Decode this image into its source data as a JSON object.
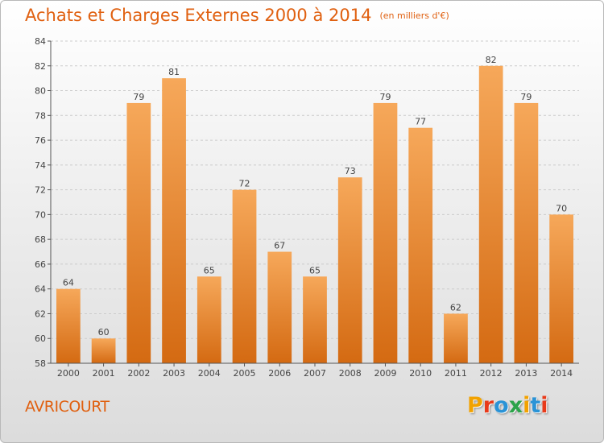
{
  "header": {
    "title": "Achats et Charges Externes 2000 à 2014",
    "unit": "(en milliers d'€)"
  },
  "footer": {
    "city": "AVRICOURT",
    "brand": "Proxiti",
    "brand_colors": [
      "#f2a200",
      "#e83a1a",
      "#2a93d6",
      "#2ba34a",
      "#f2a200",
      "#2a93d6",
      "#e83a1a"
    ]
  },
  "colors": {
    "bar_top": "#f6a85a",
    "bar_bottom": "#d46a12",
    "axis": "#555555",
    "grid": "#cccccc",
    "text": "#444444",
    "accent": "#e06010"
  },
  "chart_data": {
    "type": "bar",
    "title": "Achats et Charges Externes 2000 à 2014",
    "categories": [
      "2000",
      "2001",
      "2002",
      "2003",
      "2004",
      "2005",
      "2006",
      "2007",
      "2008",
      "2009",
      "2010",
      "2011",
      "2012",
      "2013",
      "2014"
    ],
    "values": [
      64,
      60,
      79,
      81,
      65,
      72,
      67,
      65,
      73,
      79,
      77,
      62,
      82,
      79,
      70
    ],
    "ylim": [
      58,
      84
    ],
    "yticks": [
      58,
      60,
      62,
      64,
      66,
      68,
      70,
      72,
      74,
      76,
      78,
      80,
      82,
      84
    ],
    "grid": true,
    "data_labels": true
  }
}
